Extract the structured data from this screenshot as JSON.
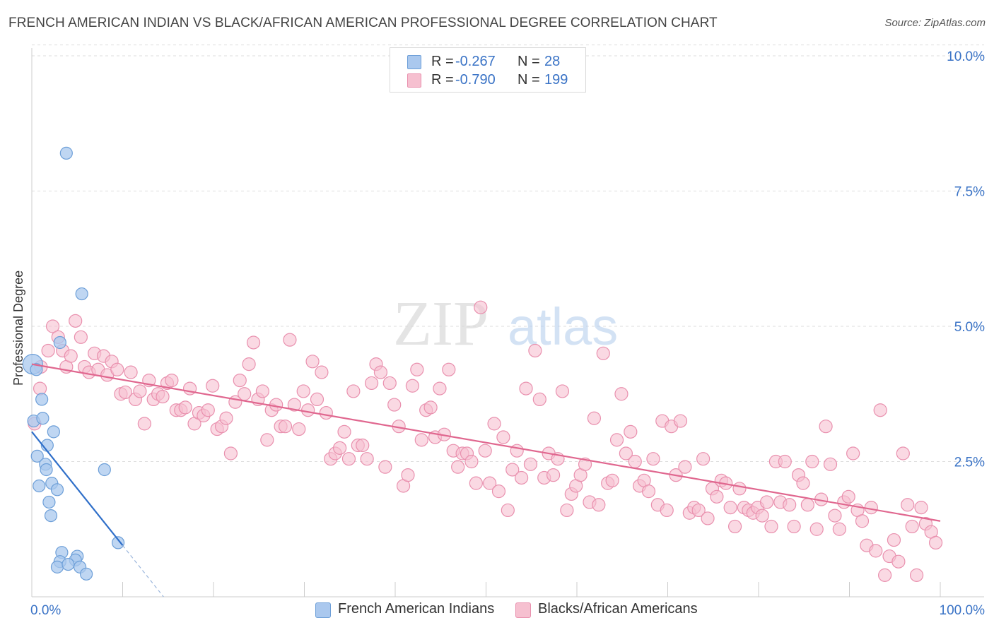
{
  "header": {
    "title": "FRENCH AMERICAN INDIAN VS BLACK/AFRICAN AMERICAN PROFESSIONAL DEGREE CORRELATION CHART",
    "source": "Source: ZipAtlas.com"
  },
  "watermark": {
    "part1": "ZIP",
    "part2": "atlas"
  },
  "colors": {
    "blue_fill": "#aac8ee",
    "blue_stroke": "#6d9fd8",
    "blue_line": "#2f6fc9",
    "pink_fill": "#f6c0d0",
    "pink_stroke": "#e990ae",
    "pink_line": "#e0678f",
    "axis_text": "#3a73c6",
    "grid": "#dddddd"
  },
  "legend": {
    "rows": [
      {
        "r_label": "R =",
        "r_value": "-0.267",
        "n_label": "N =",
        "n_value": "28",
        "color": "#aac8ee"
      },
      {
        "r_label": "R =",
        "r_value": "-0.790",
        "n_label": "N =",
        "n_value": "199",
        "color": "#f6c0d0"
      }
    ]
  },
  "chart_data": {
    "type": "scatter",
    "title": "FRENCH AMERICAN INDIAN VS BLACK/AFRICAN AMERICAN PROFESSIONAL DEGREE CORRELATION CHART",
    "xlabel": "",
    "ylabel": "Professional Degree",
    "xlim": [
      0,
      100
    ],
    "ylim": [
      0,
      10.5
    ],
    "x_tick_labels": [
      "0.0%",
      "100.0%"
    ],
    "y_ticks": [
      2.5,
      5.0,
      7.5,
      10.0
    ],
    "y_tick_labels": [
      "2.5%",
      "5.0%",
      "7.5%",
      "10.0%"
    ],
    "grid": true,
    "legend_position": "top-center",
    "series": [
      {
        "name": "French American Indians",
        "r": -0.267,
        "n": 28,
        "trend": {
          "x0": 0,
          "y0": 3.05,
          "x1": 10,
          "y1": 0.95,
          "dashed_to_x": 14.5,
          "dashed_to_y": 0.0
        },
        "points": [
          [
            0.1,
            4.3
          ],
          [
            0.5,
            4.2
          ],
          [
            3.8,
            8.2
          ],
          [
            5.5,
            5.6
          ],
          [
            3.1,
            4.7
          ],
          [
            0.2,
            3.25
          ],
          [
            1.2,
            3.3
          ],
          [
            1.1,
            3.65
          ],
          [
            2.4,
            3.05
          ],
          [
            1.7,
            2.8
          ],
          [
            0.6,
            2.6
          ],
          [
            1.5,
            2.45
          ],
          [
            1.6,
            2.35
          ],
          [
            8.0,
            2.35
          ],
          [
            0.8,
            2.05
          ],
          [
            2.2,
            2.1
          ],
          [
            2.8,
            1.98
          ],
          [
            1.9,
            1.75
          ],
          [
            2.1,
            1.5
          ],
          [
            9.5,
            1.0
          ],
          [
            3.3,
            0.82
          ],
          [
            3.1,
            0.65
          ],
          [
            5.0,
            0.75
          ],
          [
            4.8,
            0.68
          ],
          [
            2.8,
            0.55
          ],
          [
            4.0,
            0.6
          ],
          [
            5.3,
            0.55
          ],
          [
            6.0,
            0.42
          ]
        ]
      },
      {
        "name": "Blacks/African Americans",
        "r": -0.79,
        "n": 199,
        "trend": {
          "x0": 0,
          "y0": 4.3,
          "x1": 100,
          "y1": 1.4
        },
        "points": [
          [
            0.3,
            3.2
          ],
          [
            0.9,
            3.85
          ],
          [
            1.0,
            4.25
          ],
          [
            1.8,
            4.55
          ],
          [
            2.3,
            5.0
          ],
          [
            2.9,
            4.8
          ],
          [
            3.4,
            4.55
          ],
          [
            3.8,
            4.25
          ],
          [
            4.3,
            4.45
          ],
          [
            4.8,
            5.1
          ],
          [
            5.4,
            4.8
          ],
          [
            5.8,
            4.25
          ],
          [
            6.3,
            4.15
          ],
          [
            6.9,
            4.5
          ],
          [
            7.3,
            4.2
          ],
          [
            7.9,
            4.45
          ],
          [
            8.3,
            4.1
          ],
          [
            8.8,
            4.35
          ],
          [
            9.4,
            4.2
          ],
          [
            9.8,
            3.75
          ],
          [
            10.3,
            3.78
          ],
          [
            10.9,
            4.15
          ],
          [
            11.4,
            3.65
          ],
          [
            11.9,
            3.8
          ],
          [
            12.4,
            3.2
          ],
          [
            12.9,
            4.0
          ],
          [
            13.4,
            3.65
          ],
          [
            13.9,
            3.75
          ],
          [
            14.4,
            3.7
          ],
          [
            14.9,
            3.95
          ],
          [
            15.4,
            4.0
          ],
          [
            15.9,
            3.45
          ],
          [
            16.4,
            3.45
          ],
          [
            16.9,
            3.5
          ],
          [
            17.4,
            3.85
          ],
          [
            17.9,
            3.2
          ],
          [
            18.4,
            3.4
          ],
          [
            18.9,
            3.35
          ],
          [
            19.4,
            3.45
          ],
          [
            19.9,
            3.9
          ],
          [
            20.4,
            3.1
          ],
          [
            20.9,
            3.15
          ],
          [
            21.4,
            3.3
          ],
          [
            21.9,
            2.65
          ],
          [
            22.4,
            3.6
          ],
          [
            22.9,
            4.0
          ],
          [
            23.4,
            3.75
          ],
          [
            23.9,
            4.3
          ],
          [
            24.4,
            4.7
          ],
          [
            24.9,
            3.65
          ],
          [
            25.4,
            3.8
          ],
          [
            25.9,
            2.9
          ],
          [
            26.4,
            3.45
          ],
          [
            26.9,
            3.55
          ],
          [
            27.4,
            3.15
          ],
          [
            27.9,
            3.15
          ],
          [
            28.4,
            4.75
          ],
          [
            28.9,
            3.55
          ],
          [
            29.4,
            3.1
          ],
          [
            29.9,
            3.8
          ],
          [
            30.4,
            3.45
          ],
          [
            30.9,
            4.35
          ],
          [
            31.4,
            3.65
          ],
          [
            31.9,
            4.15
          ],
          [
            32.4,
            3.4
          ],
          [
            32.9,
            2.55
          ],
          [
            33.4,
            2.65
          ],
          [
            33.9,
            2.75
          ],
          [
            34.4,
            3.05
          ],
          [
            34.9,
            2.55
          ],
          [
            35.4,
            3.8
          ],
          [
            35.9,
            2.8
          ],
          [
            36.4,
            2.8
          ],
          [
            36.9,
            2.55
          ],
          [
            37.4,
            3.95
          ],
          [
            37.9,
            4.3
          ],
          [
            38.4,
            4.15
          ],
          [
            38.9,
            2.4
          ],
          [
            39.4,
            3.95
          ],
          [
            39.9,
            3.55
          ],
          [
            40.4,
            3.15
          ],
          [
            40.9,
            2.05
          ],
          [
            41.4,
            2.25
          ],
          [
            41.9,
            3.9
          ],
          [
            42.4,
            4.2
          ],
          [
            42.9,
            2.9
          ],
          [
            43.4,
            3.45
          ],
          [
            43.9,
            3.5
          ],
          [
            44.4,
            2.95
          ],
          [
            44.9,
            3.85
          ],
          [
            45.4,
            3.0
          ],
          [
            45.9,
            4.2
          ],
          [
            46.4,
            2.7
          ],
          [
            46.9,
            2.4
          ],
          [
            47.4,
            2.65
          ],
          [
            47.9,
            2.65
          ],
          [
            48.4,
            2.5
          ],
          [
            48.9,
            2.1
          ],
          [
            49.4,
            5.35
          ],
          [
            49.9,
            2.7
          ],
          [
            50.4,
            2.1
          ],
          [
            50.9,
            3.2
          ],
          [
            51.4,
            1.95
          ],
          [
            51.9,
            2.95
          ],
          [
            52.4,
            1.6
          ],
          [
            52.9,
            2.35
          ],
          [
            53.4,
            2.7
          ],
          [
            53.9,
            2.2
          ],
          [
            54.4,
            3.85
          ],
          [
            54.9,
            2.45
          ],
          [
            55.4,
            4.55
          ],
          [
            55.9,
            3.65
          ],
          [
            56.4,
            2.2
          ],
          [
            56.9,
            2.65
          ],
          [
            57.4,
            2.25
          ],
          [
            57.9,
            2.55
          ],
          [
            58.4,
            3.8
          ],
          [
            58.9,
            1.6
          ],
          [
            59.4,
            1.9
          ],
          [
            59.9,
            2.05
          ],
          [
            60.4,
            2.25
          ],
          [
            60.9,
            2.45
          ],
          [
            61.4,
            1.75
          ],
          [
            61.9,
            3.3
          ],
          [
            62.4,
            1.7
          ],
          [
            62.9,
            4.5
          ],
          [
            63.4,
            2.1
          ],
          [
            63.9,
            2.15
          ],
          [
            64.4,
            2.9
          ],
          [
            64.9,
            3.75
          ],
          [
            65.4,
            2.65
          ],
          [
            65.9,
            3.05
          ],
          [
            66.4,
            2.5
          ],
          [
            66.9,
            2.05
          ],
          [
            67.4,
            2.15
          ],
          [
            67.9,
            1.95
          ],
          [
            68.4,
            2.55
          ],
          [
            68.9,
            1.7
          ],
          [
            69.4,
            3.25
          ],
          [
            69.9,
            1.6
          ],
          [
            70.4,
            3.15
          ],
          [
            70.9,
            2.25
          ],
          [
            71.4,
            3.25
          ],
          [
            71.9,
            2.4
          ],
          [
            72.4,
            1.55
          ],
          [
            72.9,
            1.65
          ],
          [
            73.4,
            1.6
          ],
          [
            73.9,
            2.55
          ],
          [
            74.4,
            1.45
          ],
          [
            74.9,
            2.0
          ],
          [
            75.4,
            1.85
          ],
          [
            75.9,
            2.15
          ],
          [
            76.4,
            2.1
          ],
          [
            76.9,
            1.65
          ],
          [
            77.4,
            1.3
          ],
          [
            77.9,
            2.0
          ],
          [
            78.4,
            1.65
          ],
          [
            78.9,
            1.6
          ],
          [
            79.4,
            1.55
          ],
          [
            79.9,
            1.65
          ],
          [
            80.4,
            1.5
          ],
          [
            80.9,
            1.75
          ],
          [
            81.4,
            1.3
          ],
          [
            81.9,
            2.5
          ],
          [
            82.4,
            1.75
          ],
          [
            82.9,
            2.5
          ],
          [
            83.4,
            1.7
          ],
          [
            83.9,
            1.3
          ],
          [
            84.4,
            2.25
          ],
          [
            84.9,
            2.1
          ],
          [
            85.4,
            1.7
          ],
          [
            85.9,
            2.5
          ],
          [
            86.4,
            1.25
          ],
          [
            86.9,
            1.8
          ],
          [
            87.4,
            3.15
          ],
          [
            87.9,
            2.45
          ],
          [
            88.4,
            1.5
          ],
          [
            88.9,
            1.25
          ],
          [
            89.4,
            1.75
          ],
          [
            89.9,
            1.85
          ],
          [
            90.4,
            2.65
          ],
          [
            90.9,
            1.6
          ],
          [
            91.4,
            1.4
          ],
          [
            91.9,
            0.95
          ],
          [
            92.4,
            1.65
          ],
          [
            92.9,
            0.85
          ],
          [
            93.4,
            3.45
          ],
          [
            93.9,
            0.4
          ],
          [
            94.4,
            0.75
          ],
          [
            94.9,
            1.05
          ],
          [
            95.4,
            0.65
          ],
          [
            95.9,
            2.65
          ],
          [
            96.4,
            1.7
          ],
          [
            96.9,
            1.3
          ],
          [
            97.4,
            0.4
          ],
          [
            97.9,
            1.65
          ],
          [
            98.4,
            1.35
          ],
          [
            99.0,
            1.2
          ],
          [
            99.5,
            1.0
          ]
        ]
      }
    ]
  }
}
